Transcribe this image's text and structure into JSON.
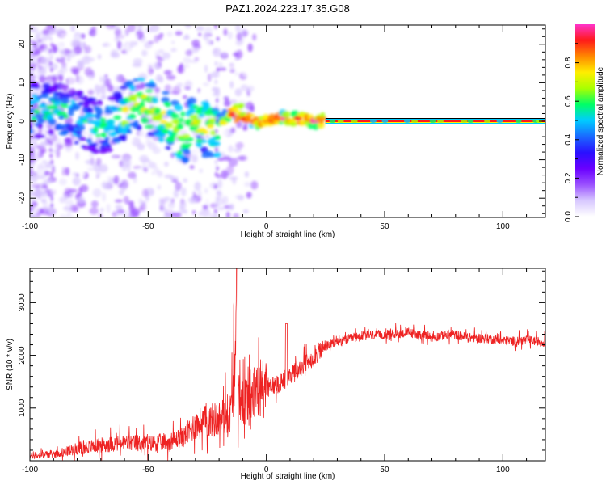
{
  "title": "PAZ1.2024.223.17.35.G08",
  "colors": {
    "snr_line": "#ee2222",
    "colormap": [
      "#ffffff",
      "#d8c8ff",
      "#9a50ff",
      "#6a00ff",
      "#2a10ff",
      "#1a6aff",
      "#00ccff",
      "#00ff66",
      "#aaff00",
      "#ffee00",
      "#ff8800",
      "#ff1a1a",
      "#ff33cc"
    ]
  },
  "chart_data": [
    {
      "type": "heatmap",
      "panel": "top",
      "xlabel": "Height of straight line (km)",
      "ylabel": "Frequency (Hz)",
      "xlim": [
        -100,
        118
      ],
      "ylim": [
        -25,
        25
      ],
      "xticks": [
        -100,
        -50,
        0,
        50,
        100
      ],
      "yticks": [
        -20,
        -10,
        0,
        10,
        20
      ],
      "colorbar": {
        "label": "Normalized spectral amplitude",
        "range": [
          0,
          1
        ],
        "ticks": [
          "0.0",
          "0.2",
          "0.4",
          "0.6",
          "0.8"
        ]
      },
      "ridge": {
        "x": [
          -100,
          -90,
          -80,
          -70,
          -60,
          -55,
          -50,
          -45,
          -40,
          -35,
          -30,
          -25,
          -20,
          -15,
          -10,
          -5,
          0,
          5,
          10,
          15,
          20,
          25,
          118
        ],
        "freq": [
          3,
          3,
          1,
          -2,
          2,
          5,
          4,
          2,
          -1,
          -4,
          0,
          -2,
          -2,
          2,
          1,
          0,
          0,
          1,
          0.5,
          0.5,
          0,
          0,
          0
        ]
      },
      "line_band": {
        "x_start": 25,
        "x_end": 118,
        "freq": 0
      }
    },
    {
      "type": "line",
      "panel": "bottom",
      "xlabel": "Height of straight line (km)",
      "ylabel": "SNR (10 * v/v)",
      "xlim": [
        -100,
        118
      ],
      "ylim": [
        0,
        3650
      ],
      "xticks": [
        -100,
        -50,
        0,
        50,
        100
      ],
      "yticks": [
        1000,
        2000,
        3000
      ],
      "series": [
        {
          "x": [
            -100,
            -95,
            -90,
            -85,
            -80,
            -75,
            -70,
            -65,
            -60,
            -55,
            -50,
            -45,
            -40,
            -35,
            -30,
            -25,
            -20,
            -15,
            -13,
            -10,
            -5,
            0,
            5,
            10,
            15,
            20,
            25,
            30,
            35,
            40,
            45,
            50,
            55,
            60,
            65,
            70,
            75,
            80,
            85,
            90,
            95,
            100,
            105,
            110,
            118
          ],
          "values": [
            80,
            100,
            120,
            160,
            220,
            250,
            280,
            300,
            320,
            320,
            310,
            330,
            360,
            430,
            650,
            720,
            760,
            900,
            1800,
            1000,
            1200,
            1350,
            1450,
            1600,
            1750,
            1950,
            2150,
            2250,
            2300,
            2350,
            2370,
            2380,
            2400,
            2420,
            2380,
            2330,
            2370,
            2380,
            2330,
            2320,
            2300,
            2270,
            2260,
            2280,
            2240
          ]
        }
      ]
    }
  ]
}
